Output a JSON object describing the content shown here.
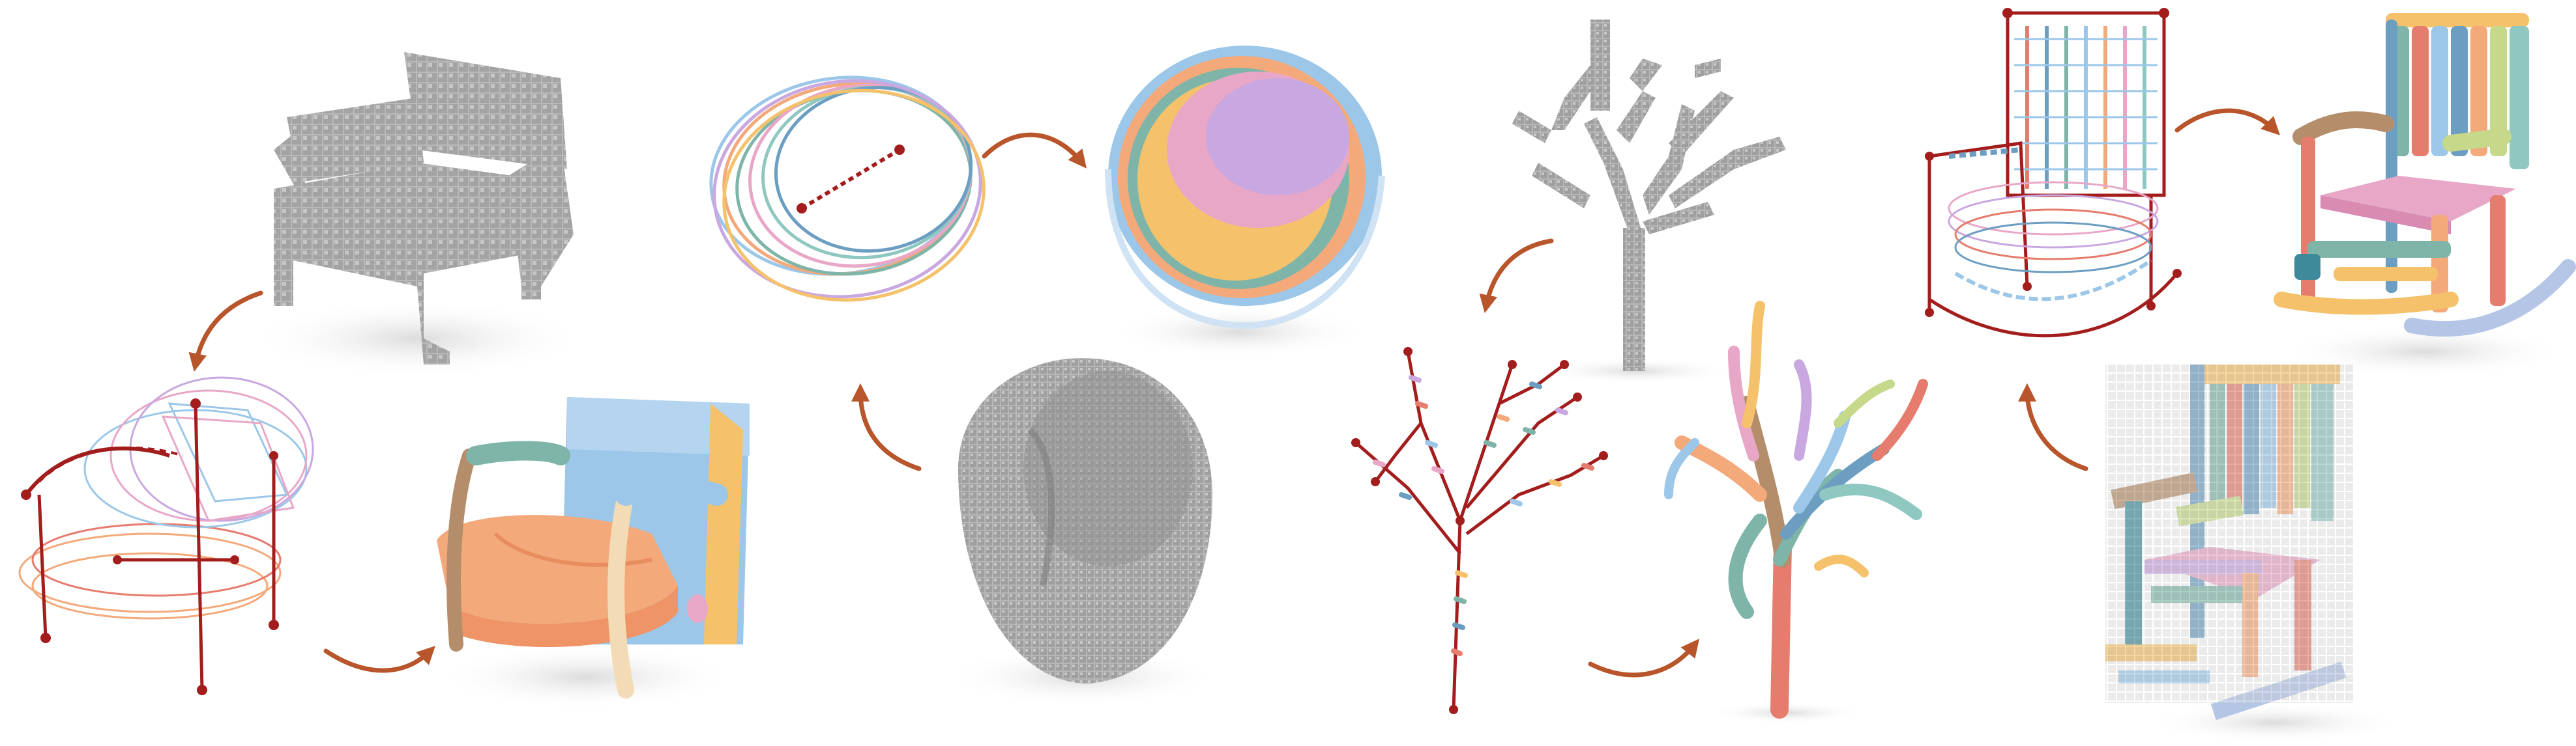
{
  "figure": {
    "panels": [
      {
        "id": "armchair",
        "stages": [
          "voxel-input",
          "curve-skeleton",
          "primitive-assembly"
        ]
      },
      {
        "id": "bowl",
        "stages": [
          "voxel-input",
          "curve-skeleton",
          "primitive-assembly"
        ]
      },
      {
        "id": "tree",
        "stages": [
          "voxel-input",
          "curve-skeleton",
          "primitive-assembly"
        ]
      },
      {
        "id": "rocking-chair",
        "stages": [
          "voxel-input",
          "curve-skeleton",
          "primitive-assembly"
        ]
      }
    ],
    "colors": {
      "arrow": "#b8552a",
      "voxel_gray": "#a9a9a9",
      "skeleton_red": "#a31d1d",
      "palette": [
        "#f4a97a",
        "#9cc7e8",
        "#e9a7c7",
        "#7fb5a8",
        "#f5c26b",
        "#c9a7e0",
        "#8fc7c1",
        "#e57c6e",
        "#6c9ec2",
        "#c6d889"
      ]
    },
    "icons": [
      "voxel-model",
      "skeleton-graph",
      "primitive-mesh",
      "curved-arrow"
    ]
  }
}
